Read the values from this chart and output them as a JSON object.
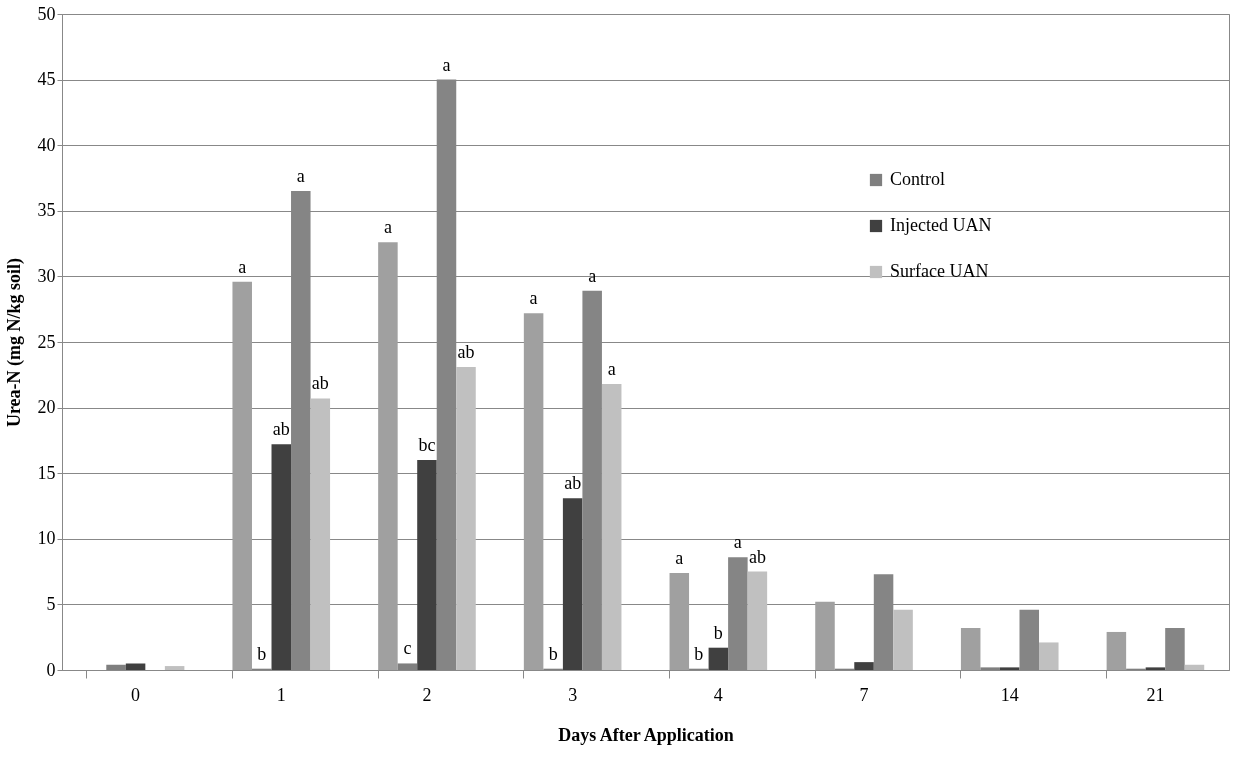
{
  "chart_data": {
    "type": "bar",
    "xlabel": "Days After Application",
    "ylabel": "Urea-N (mg N/kg soil)",
    "categories": [
      "0",
      "1",
      "2",
      "3",
      "4",
      "7",
      "14",
      "21"
    ],
    "ylim": [
      0,
      50
    ],
    "yticks": [
      0,
      5,
      10,
      15,
      20,
      25,
      30,
      35,
      40,
      45,
      50
    ],
    "grid": "y",
    "legend": "right",
    "series": [
      {
        "color": "#a0a0a0",
        "values": [
          0,
          29.6,
          32.6,
          27.2,
          7.4,
          5.2,
          3.2,
          2.9
        ],
        "value_labels": [
          null,
          "a",
          "a",
          "a",
          "a",
          null,
          null,
          null
        ]
      },
      {
        "name": "Control",
        "color": "#7f7f7f",
        "values": [
          0.4,
          0.1,
          0.5,
          0.1,
          0.1,
          0.1,
          0.2,
          0.1
        ],
        "value_labels": [
          null,
          "b",
          "c",
          "b",
          "b",
          null,
          null,
          null
        ]
      },
      {
        "name": "Injected UAN",
        "color": "#404040",
        "values": [
          0.5,
          17.2,
          16.0,
          13.1,
          1.7,
          0.6,
          0.2,
          0.2
        ],
        "value_labels": [
          null,
          "ab",
          "bc",
          "ab",
          "b",
          null,
          null,
          null
        ]
      },
      {
        "color": "#858585",
        "values": [
          0,
          36.5,
          45.0,
          28.9,
          8.6,
          7.3,
          4.6,
          3.2
        ],
        "value_labels": [
          null,
          "a",
          "a",
          "a",
          "a",
          null,
          null,
          null
        ]
      },
      {
        "name": "Surface UAN",
        "color": "#c0c0c0",
        "values": [
          0.3,
          20.7,
          23.1,
          21.8,
          7.5,
          4.6,
          2.1,
          0.4
        ],
        "value_labels": [
          null,
          "ab",
          "ab",
          "a",
          "ab",
          null,
          null,
          null
        ]
      }
    ]
  }
}
